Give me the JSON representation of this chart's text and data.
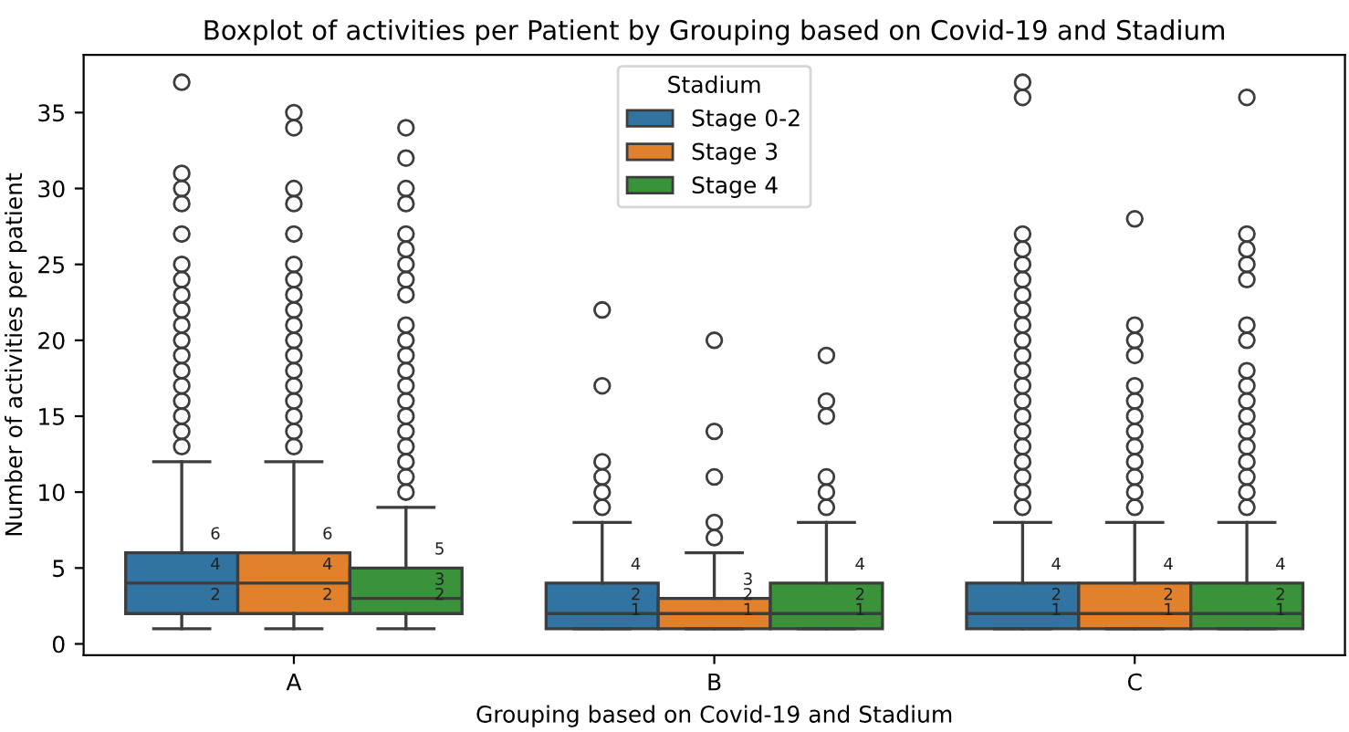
{
  "chart_data": {
    "type": "box",
    "title": "Boxplot of activities per Patient by Grouping based on Covid-19 and Stadium",
    "xlabel": "Grouping based on Covid-19 and Stadium",
    "ylabel": "Number of activities per patient",
    "legend_title": "Stadium",
    "categories": [
      "A",
      "B",
      "C"
    ],
    "ylim": [
      -0.74,
      38.8
    ],
    "yticks": [
      0,
      5,
      10,
      15,
      20,
      25,
      30,
      35
    ],
    "grid": false,
    "legend": "top",
    "marker": "circle",
    "series": [
      {
        "name": "Stage 0-2",
        "color": "#3274a1",
        "value_labels": [
          [
            "2",
            "4",
            "6"
          ],
          [
            "1",
            "2",
            "4"
          ],
          [
            "1",
            "2",
            "4"
          ]
        ],
        "boxes": [
          {
            "low": 1,
            "q1": 2,
            "median": 4,
            "q3": 6,
            "high": 12,
            "outliers": [
              13,
              14,
              15,
              16,
              17,
              18,
              19,
              20,
              21,
              22,
              23,
              24,
              25,
              27,
              29,
              30,
              31,
              37
            ]
          },
          {
            "low": 1,
            "q1": 1,
            "median": 2,
            "q3": 4,
            "high": 8,
            "outliers": [
              9,
              10,
              11,
              12,
              17,
              22
            ]
          },
          {
            "low": 1,
            "q1": 1,
            "median": 2,
            "q3": 4,
            "high": 8,
            "outliers": [
              9,
              10,
              11,
              12,
              13,
              14,
              15,
              16,
              17,
              18,
              19,
              20,
              21,
              22,
              23,
              24,
              25,
              26,
              27,
              36,
              37
            ]
          }
        ]
      },
      {
        "name": "Stage 3",
        "color": "#e1812c",
        "value_labels": [
          [
            "2",
            "4",
            "6"
          ],
          [
            "1",
            "2",
            "3"
          ],
          [
            "1",
            "2",
            "4"
          ]
        ],
        "boxes": [
          {
            "low": 1,
            "q1": 2,
            "median": 4,
            "q3": 6,
            "high": 12,
            "outliers": [
              13,
              14,
              15,
              16,
              17,
              18,
              19,
              20,
              21,
              22,
              23,
              24,
              25,
              27,
              29,
              30,
              34,
              35
            ]
          },
          {
            "low": 1,
            "q1": 1,
            "median": 2,
            "q3": 3,
            "high": 6,
            "outliers": [
              7,
              8,
              11,
              14,
              20
            ]
          },
          {
            "low": 1,
            "q1": 1,
            "median": 2,
            "q3": 4,
            "high": 8,
            "outliers": [
              9,
              10,
              11,
              12,
              13,
              14,
              15,
              16,
              17,
              19,
              20,
              21,
              28
            ]
          }
        ]
      },
      {
        "name": "Stage 4",
        "color": "#3a923a",
        "value_labels": [
          [
            "2",
            "3",
            "5"
          ],
          [
            "1",
            "2",
            "4"
          ],
          [
            "1",
            "2",
            "4"
          ]
        ],
        "boxes": [
          {
            "low": 1,
            "q1": 2,
            "median": 3,
            "q3": 5,
            "high": 9,
            "outliers": [
              10,
              11,
              12,
              13,
              14,
              15,
              16,
              17,
              18,
              19,
              20,
              21,
              23,
              24,
              25,
              26,
              27,
              29,
              30,
              32,
              34
            ]
          },
          {
            "low": 1,
            "q1": 1,
            "median": 2,
            "q3": 4,
            "high": 8,
            "outliers": [
              9,
              10,
              11,
              15,
              16,
              19
            ]
          },
          {
            "low": 1,
            "q1": 1,
            "median": 2,
            "q3": 4,
            "high": 8,
            "outliers": [
              9,
              10,
              11,
              12,
              13,
              14,
              15,
              16,
              17,
              18,
              20,
              21,
              24,
              25,
              26,
              27,
              36
            ]
          }
        ]
      }
    ]
  }
}
